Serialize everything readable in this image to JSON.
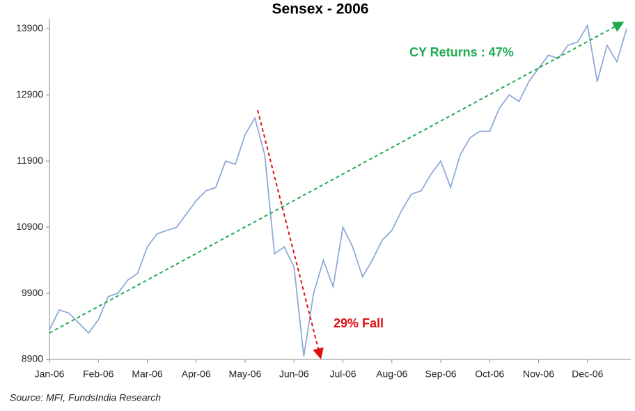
{
  "chart_data": {
    "type": "line",
    "title": "Sensex - 2006",
    "categories": [
      "Jan-06",
      null,
      null,
      null,
      null,
      "Feb-06",
      null,
      null,
      null,
      null,
      "Mar-06",
      null,
      null,
      null,
      null,
      "Apr-06",
      null,
      null,
      null,
      null,
      "May-06",
      null,
      null,
      null,
      null,
      "Jun-06",
      null,
      null,
      null,
      null,
      "Jul-06",
      null,
      null,
      null,
      null,
      "Aug-06",
      null,
      null,
      null,
      null,
      "Sep-06",
      null,
      null,
      null,
      null,
      "Oct-06",
      null,
      null,
      null,
      null,
      "Nov-06",
      null,
      null,
      null,
      null,
      "Dec-06",
      null,
      null,
      null,
      null
    ],
    "series": [
      {
        "name": "Sensex",
        "color": "#8eaad9",
        "values": [
          9350,
          9650,
          9600,
          9450,
          9300,
          9500,
          9850,
          9900,
          10100,
          10200,
          10600,
          10800,
          10850,
          10900,
          11100,
          11300,
          11450,
          11500,
          11900,
          11850,
          12300,
          12550,
          12000,
          10500,
          10600,
          10300,
          8950,
          9900,
          10400,
          10000,
          10900,
          10600,
          10150,
          10400,
          10700,
          10850,
          11150,
          11400,
          11450,
          11700,
          11900,
          11500,
          12000,
          12250,
          12350,
          12350,
          12700,
          12900,
          12800,
          13100,
          13300,
          13500,
          13450,
          13650,
          13700,
          13950,
          13100,
          13650,
          13400,
          13900
        ]
      }
    ],
    "ylim": [
      8900,
      14050
    ],
    "yticks": [
      8900,
      9900,
      10900,
      11900,
      12900,
      13900
    ],
    "grid": false,
    "annotations": [
      "CY Returns : 47%",
      "29% Fall"
    ],
    "source": "Source: MFI, FundsIndia Research"
  }
}
